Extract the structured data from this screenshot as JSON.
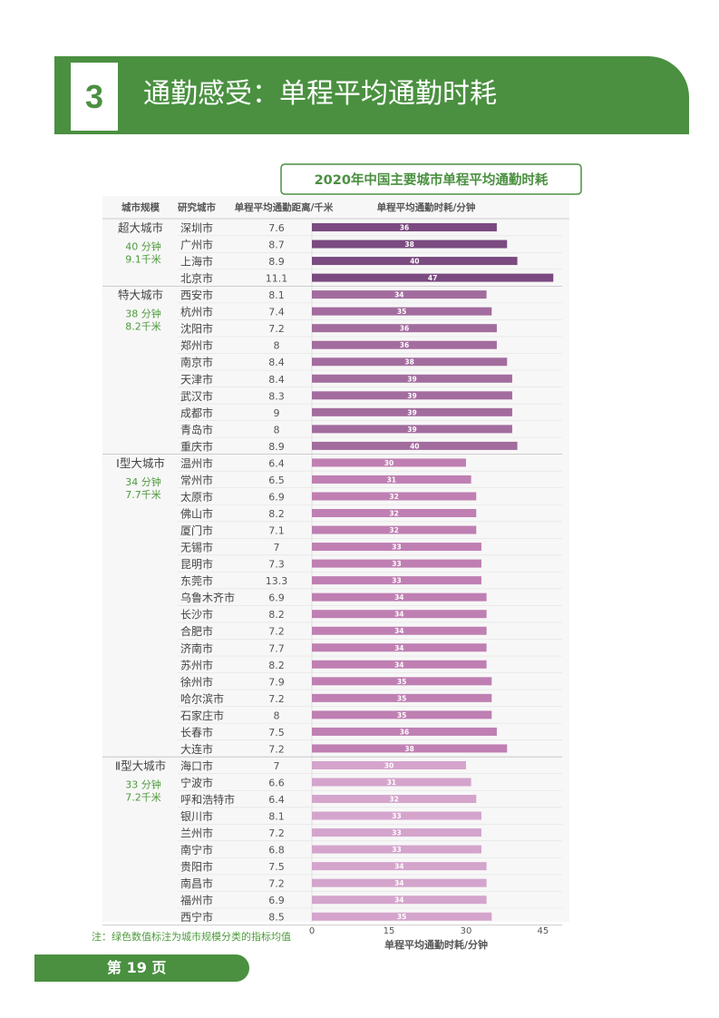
{
  "header": {
    "section_number": "3",
    "title": "通勤感受：单程平均通勤时耗"
  },
  "footer": {
    "page_label": "第 19 页"
  },
  "colors": {
    "brand_green": "#4a9040",
    "note_green": "#4e9a3c"
  },
  "chart_data": {
    "type": "bar",
    "orientation": "horizontal",
    "title": "2020年中国主要城市单程平均通勤时耗",
    "column_headers": [
      "城市规模",
      "研究城市",
      "单程平均通勤距离/千米",
      "单程平均通勤时耗/分钟"
    ],
    "xlabel": "单程平均通勤时耗/分钟",
    "xlim": [
      0,
      50
    ],
    "x_ticks": [
      "0",
      "15",
      "30",
      "45"
    ],
    "note": "注：绿色数值标注为城市规模分类的指标均值",
    "groups": [
      {
        "name": "超大城市",
        "avg_time": "40 分钟",
        "avg_dist": "9.1千米",
        "color": "#7a4a80",
        "cities": [
          {
            "city": "深圳市",
            "distance": "7.6",
            "time": 36
          },
          {
            "city": "广州市",
            "distance": "8.7",
            "time": 38
          },
          {
            "city": "上海市",
            "distance": "8.9",
            "time": 40
          },
          {
            "city": "北京市",
            "distance": "11.1",
            "time": 47
          }
        ]
      },
      {
        "name": "特大城市",
        "avg_time": "38 分钟",
        "avg_dist": "8.2千米",
        "color": "#a36c9e",
        "cities": [
          {
            "city": "西安市",
            "distance": "8.1",
            "time": 34
          },
          {
            "city": "杭州市",
            "distance": "7.4",
            "time": 35
          },
          {
            "city": "沈阳市",
            "distance": "7.2",
            "time": 36
          },
          {
            "city": "郑州市",
            "distance": "8",
            "time": 36
          },
          {
            "city": "南京市",
            "distance": "8.4",
            "time": 38
          },
          {
            "city": "天津市",
            "distance": "8.4",
            "time": 39
          },
          {
            "city": "武汉市",
            "distance": "8.3",
            "time": 39
          },
          {
            "city": "成都市",
            "distance": "9",
            "time": 39
          },
          {
            "city": "青岛市",
            "distance": "8",
            "time": 39
          },
          {
            "city": "重庆市",
            "distance": "8.9",
            "time": 40
          }
        ]
      },
      {
        "name": "Ⅰ型大城市",
        "avg_time": "34 分钟",
        "avg_dist": "7.7千米",
        "color": "#bf7fb2",
        "cities": [
          {
            "city": "温州市",
            "distance": "6.4",
            "time": 30
          },
          {
            "city": "常州市",
            "distance": "6.5",
            "time": 31
          },
          {
            "city": "太原市",
            "distance": "6.9",
            "time": 32
          },
          {
            "city": "佛山市",
            "distance": "8.2",
            "time": 32
          },
          {
            "city": "厦门市",
            "distance": "7.1",
            "time": 32
          },
          {
            "city": "无锡市",
            "distance": "7",
            "time": 33
          },
          {
            "city": "昆明市",
            "distance": "7.3",
            "time": 33
          },
          {
            "city": "东莞市",
            "distance": "13.3",
            "time": 33
          },
          {
            "city": "乌鲁木齐市",
            "distance": "6.9",
            "time": 34
          },
          {
            "city": "长沙市",
            "distance": "8.2",
            "time": 34
          },
          {
            "city": "合肥市",
            "distance": "7.2",
            "time": 34
          },
          {
            "city": "济南市",
            "distance": "7.7",
            "time": 34
          },
          {
            "city": "苏州市",
            "distance": "8.2",
            "time": 34
          },
          {
            "city": "徐州市",
            "distance": "7.9",
            "time": 35
          },
          {
            "city": "哈尔滨市",
            "distance": "7.2",
            "time": 35
          },
          {
            "city": "石家庄市",
            "distance": "8",
            "time": 35
          },
          {
            "city": "长春市",
            "distance": "7.5",
            "time": 36
          },
          {
            "city": "大连市",
            "distance": "7.2",
            "time": 38
          }
        ]
      },
      {
        "name": "Ⅱ型大城市",
        "avg_time": "33 分钟",
        "avg_dist": "7.2千米",
        "color": "#d4a4cc",
        "cities": [
          {
            "city": "海口市",
            "distance": "7",
            "time": 30
          },
          {
            "city": "宁波市",
            "distance": "6.6",
            "time": 31
          },
          {
            "city": "呼和浩特市",
            "distance": "6.4",
            "time": 32
          },
          {
            "city": "银川市",
            "distance": "8.1",
            "time": 33
          },
          {
            "city": "兰州市",
            "distance": "7.2",
            "time": 33
          },
          {
            "city": "南宁市",
            "distance": "6.8",
            "time": 33
          },
          {
            "city": "贵阳市",
            "distance": "7.5",
            "time": 34
          },
          {
            "city": "南昌市",
            "distance": "7.2",
            "time": 34
          },
          {
            "city": "福州市",
            "distance": "6.9",
            "time": 34
          },
          {
            "city": "西宁市",
            "distance": "8.5",
            "time": 35
          }
        ]
      }
    ]
  }
}
